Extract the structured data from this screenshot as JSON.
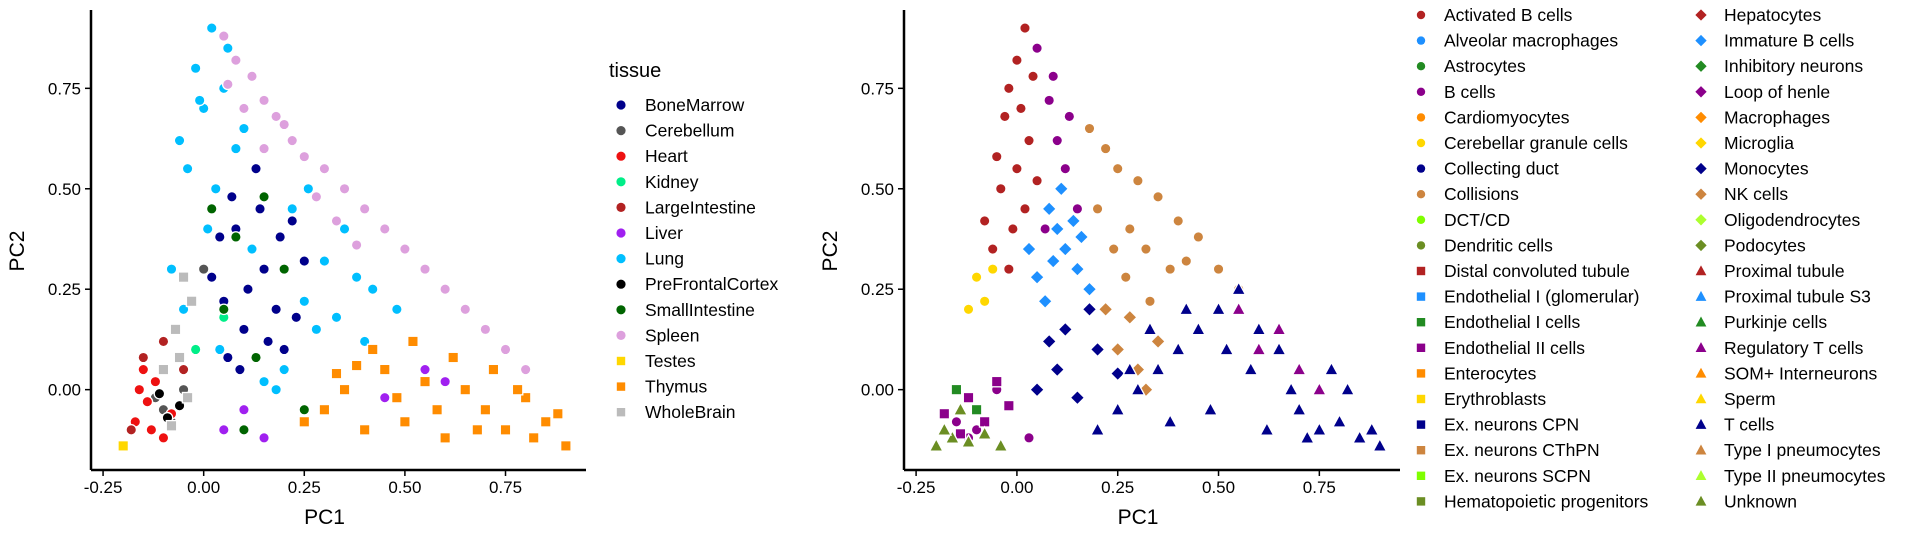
{
  "chart_data": [
    {
      "type": "scatter",
      "xlabel": "PC1",
      "ylabel": "PC2",
      "xlim": [
        -0.28,
        0.95
      ],
      "ylim": [
        -0.2,
        0.94
      ],
      "x_ticks": [
        -0.25,
        0.0,
        0.25,
        0.5,
        0.75
      ],
      "x_tick_labels": [
        "-0.25",
        "0.00",
        "0.25",
        "0.50",
        "0.75"
      ],
      "y_ticks": [
        0.0,
        0.25,
        0.5,
        0.75
      ],
      "y_tick_labels": [
        "0.00",
        "0.25",
        "0.50",
        "0.75"
      ],
      "grid": false,
      "legend_title": "tissue",
      "legend_placement": "right",
      "series": [
        {
          "name": "BoneMarrow",
          "color": "#00008b",
          "shape": "circle",
          "x": [
            0.08,
            0.12,
            0.15,
            0.05,
            0.1,
            0.18,
            0.22,
            0.02,
            0.07,
            0.13,
            0.2,
            0.25,
            0.09,
            0.16,
            0.11,
            0.04,
            0.14,
            0.19,
            0.06,
            0.23
          ],
          "y": [
            0.4,
            0.35,
            0.3,
            0.22,
            0.15,
            0.2,
            0.42,
            0.28,
            0.48,
            0.55,
            0.1,
            0.32,
            0.05,
            0.12,
            0.25,
            0.38,
            0.45,
            0.38,
            0.08,
            0.18
          ]
        },
        {
          "name": "Cerebellum",
          "color": "#555555",
          "shape": "circle",
          "x": [
            -0.1,
            -0.05,
            -0.08,
            -0.12,
            0.0
          ],
          "y": [
            -0.05,
            0.0,
            -0.08,
            -0.02,
            0.3
          ]
        },
        {
          "name": "Heart",
          "color": "#ee1111",
          "shape": "circle",
          "x": [
            -0.17,
            -0.14,
            -0.12,
            -0.15,
            -0.1,
            -0.08,
            -0.13,
            -0.16
          ],
          "y": [
            -0.08,
            -0.03,
            0.02,
            0.05,
            -0.12,
            -0.06,
            -0.1,
            0.0
          ]
        },
        {
          "name": "Kidney",
          "color": "#00ee88",
          "shape": "circle",
          "x": [
            -0.02,
            0.05
          ],
          "y": [
            0.1,
            0.18
          ]
        },
        {
          "name": "LargeIntestine",
          "color": "#b22222",
          "shape": "circle",
          "x": [
            -0.18,
            -0.15,
            -0.1,
            -0.05
          ],
          "y": [
            -0.1,
            0.08,
            0.12,
            0.05
          ]
        },
        {
          "name": "Liver",
          "color": "#a020f0",
          "shape": "circle",
          "x": [
            0.05,
            0.1,
            0.15,
            0.45,
            0.55,
            0.6
          ],
          "y": [
            -0.1,
            -0.05,
            -0.12,
            -0.02,
            0.05,
            0.02
          ]
        },
        {
          "name": "Lung",
          "color": "#00bfff",
          "shape": "circle",
          "x": [
            0.02,
            -0.02,
            0.0,
            0.05,
            0.08,
            -0.04,
            0.03,
            0.12,
            0.3,
            0.35,
            0.38,
            0.42,
            0.28,
            0.2,
            0.15,
            -0.05,
            -0.08,
            0.01,
            0.04,
            -0.06,
            0.18,
            0.25,
            0.33,
            0.4,
            0.48,
            0.22,
            0.26,
            0.1,
            0.06,
            -0.01
          ],
          "y": [
            0.9,
            0.8,
            0.7,
            0.75,
            0.6,
            0.55,
            0.5,
            0.35,
            0.32,
            0.4,
            0.28,
            0.25,
            0.15,
            0.05,
            0.02,
            0.2,
            0.3,
            0.4,
            0.1,
            0.62,
            0.0,
            0.22,
            0.18,
            0.12,
            0.2,
            0.45,
            0.5,
            0.65,
            0.85,
            0.72
          ]
        },
        {
          "name": "PreFrontalCortex",
          "color": "#000000",
          "shape": "circle",
          "x": [
            -0.09,
            -0.06,
            -0.11
          ],
          "y": [
            -0.07,
            -0.04,
            -0.01
          ]
        },
        {
          "name": "SmallIntestine",
          "color": "#006400",
          "shape": "circle",
          "x": [
            0.02,
            0.08,
            0.15,
            0.2,
            0.1,
            0.05,
            0.13,
            0.25
          ],
          "y": [
            0.45,
            0.38,
            0.48,
            0.3,
            -0.1,
            0.2,
            0.08,
            -0.05
          ]
        },
        {
          "name": "Spleen",
          "color": "#dda0dd",
          "shape": "circle",
          "x": [
            0.05,
            0.08,
            0.12,
            0.15,
            0.18,
            0.22,
            0.25,
            0.3,
            0.35,
            0.4,
            0.45,
            0.5,
            0.55,
            0.6,
            0.65,
            0.7,
            0.75,
            0.8,
            0.1,
            0.2,
            0.28,
            0.33,
            0.38,
            0.15,
            0.06
          ],
          "y": [
            0.88,
            0.82,
            0.78,
            0.72,
            0.68,
            0.62,
            0.58,
            0.55,
            0.5,
            0.45,
            0.4,
            0.35,
            0.3,
            0.25,
            0.2,
            0.15,
            0.1,
            0.05,
            0.7,
            0.66,
            0.48,
            0.42,
            0.36,
            0.6,
            0.76
          ]
        },
        {
          "name": "Testes",
          "color": "#ffd700",
          "shape": "square",
          "x": [
            -0.2
          ],
          "y": [
            -0.14
          ]
        },
        {
          "name": "Thymus",
          "color": "#ff8c00",
          "shape": "square",
          "x": [
            0.3,
            0.35,
            0.4,
            0.45,
            0.5,
            0.55,
            0.6,
            0.65,
            0.7,
            0.75,
            0.8,
            0.85,
            0.9,
            0.42,
            0.52,
            0.62,
            0.72,
            0.82,
            0.38,
            0.48,
            0.58,
            0.68,
            0.78,
            0.88,
            0.25,
            0.33
          ],
          "y": [
            -0.05,
            0.0,
            -0.1,
            0.05,
            -0.08,
            0.02,
            -0.12,
            0.0,
            -0.05,
            -0.1,
            -0.02,
            -0.08,
            -0.14,
            0.1,
            0.12,
            0.08,
            0.05,
            -0.12,
            0.06,
            -0.02,
            -0.05,
            -0.1,
            0.0,
            -0.06,
            -0.08,
            0.04
          ]
        },
        {
          "name": "WholeBrain",
          "color": "#bbbbbb",
          "shape": "square",
          "x": [
            -0.05,
            -0.03,
            -0.07,
            -0.1,
            -0.04,
            -0.08,
            -0.06
          ],
          "y": [
            0.28,
            0.22,
            0.15,
            0.05,
            -0.02,
            -0.09,
            0.08
          ]
        }
      ]
    },
    {
      "type": "scatter",
      "xlabel": "PC1",
      "ylabel": "PC2",
      "xlim": [
        -0.28,
        0.95
      ],
      "ylim": [
        -0.2,
        0.94
      ],
      "x_ticks": [
        -0.25,
        0.0,
        0.25,
        0.5,
        0.75
      ],
      "x_tick_labels": [
        "-0.25",
        "0.00",
        "0.25",
        "0.50",
        "0.75"
      ],
      "y_ticks": [
        0.0,
        0.25,
        0.5,
        0.75
      ],
      "y_tick_labels": [
        "0.00",
        "0.25",
        "0.50",
        "0.75"
      ],
      "grid": false,
      "legend_placement": "right",
      "series": [
        {
          "name": "Activated B cells",
          "color": "#b22222",
          "shape": "circle",
          "x": [
            0.02,
            0.0,
            -0.02,
            0.04,
            -0.03,
            0.01,
            0.03,
            -0.05,
            -0.04,
            0.0,
            0.02,
            -0.01,
            -0.06,
            -0.02,
            0.05,
            -0.08
          ],
          "y": [
            0.9,
            0.82,
            0.75,
            0.78,
            0.68,
            0.7,
            0.62,
            0.58,
            0.5,
            0.55,
            0.45,
            0.4,
            0.35,
            0.3,
            0.52,
            0.42
          ]
        },
        {
          "name": "Alveolar macrophages",
          "color": "#1e90ff",
          "shape": "circle",
          "x": [],
          "y": []
        },
        {
          "name": "Astrocytes",
          "color": "#228b22",
          "shape": "circle",
          "x": [],
          "y": []
        },
        {
          "name": "B cells",
          "color": "#8b008b",
          "shape": "circle",
          "x": [
            0.05,
            0.08,
            0.1,
            0.12,
            0.15,
            0.07,
            0.09,
            0.13,
            -0.12,
            -0.15,
            -0.1,
            -0.05,
            0.03
          ],
          "y": [
            0.85,
            0.72,
            0.62,
            0.55,
            0.45,
            0.4,
            0.78,
            0.68,
            -0.12,
            -0.08,
            -0.1,
            0.0,
            -0.12
          ]
        },
        {
          "name": "Cardiomyocytes",
          "color": "#ff8c00",
          "shape": "circle",
          "x": [],
          "y": []
        },
        {
          "name": "Cerebellar granule cells",
          "color": "#ffd700",
          "shape": "circle",
          "x": [
            -0.1,
            -0.08,
            -0.12,
            -0.06
          ],
          "y": [
            0.28,
            0.22,
            0.2,
            0.3
          ]
        },
        {
          "name": "Collecting duct",
          "color": "#00008b",
          "shape": "circle",
          "x": [],
          "y": []
        },
        {
          "name": "Collisions",
          "color": "#cd853f",
          "shape": "circle",
          "x": [
            0.18,
            0.22,
            0.25,
            0.3,
            0.35,
            0.4,
            0.45,
            0.28,
            0.32,
            0.38,
            0.2,
            0.24,
            0.42,
            0.5,
            0.55,
            0.27,
            0.33
          ],
          "y": [
            0.65,
            0.6,
            0.55,
            0.52,
            0.48,
            0.42,
            0.38,
            0.4,
            0.35,
            0.3,
            0.45,
            0.35,
            0.32,
            0.3,
            0.25,
            0.28,
            0.22
          ]
        },
        {
          "name": "DCT/CD",
          "color": "#7fff00",
          "shape": "circle",
          "x": [],
          "y": []
        },
        {
          "name": "Dendritic cells",
          "color": "#6b8e23",
          "shape": "circle",
          "x": [],
          "y": []
        },
        {
          "name": "Distal convoluted tubule",
          "color": "#b22222",
          "shape": "square",
          "x": [],
          "y": []
        },
        {
          "name": "Endothelial I (glomerular)",
          "color": "#1e90ff",
          "shape": "square",
          "x": [],
          "y": []
        },
        {
          "name": "Endothelial I cells",
          "color": "#228b22",
          "shape": "square",
          "x": [
            -0.15,
            -0.1
          ],
          "y": [
            0.0,
            -0.05
          ]
        },
        {
          "name": "Endothelial II cells",
          "color": "#8b008b",
          "shape": "square",
          "x": [
            -0.18,
            -0.12,
            -0.08,
            -0.05,
            -0.02,
            -0.14
          ],
          "y": [
            -0.06,
            -0.02,
            -0.08,
            0.02,
            -0.04,
            -0.11
          ]
        },
        {
          "name": "Enterocytes",
          "color": "#ff8c00",
          "shape": "square",
          "x": [],
          "y": []
        },
        {
          "name": "Erythroblasts",
          "color": "#ffd700",
          "shape": "square",
          "x": [],
          "y": []
        },
        {
          "name": "Ex. neurons CPN",
          "color": "#00008b",
          "shape": "square",
          "x": [],
          "y": []
        },
        {
          "name": "Ex. neurons CThPN",
          "color": "#cd853f",
          "shape": "square",
          "x": [],
          "y": []
        },
        {
          "name": "Ex. neurons SCPN",
          "color": "#7fff00",
          "shape": "square",
          "x": [],
          "y": []
        },
        {
          "name": "Hematopoietic progenitors",
          "color": "#6b8e23",
          "shape": "square",
          "x": [],
          "y": []
        },
        {
          "name": "Hepatocytes",
          "color": "#b22222",
          "shape": "diamond",
          "x": [],
          "y": []
        },
        {
          "name": "Immature B cells",
          "color": "#1e90ff",
          "shape": "diamond",
          "x": [
            0.08,
            0.1,
            0.12,
            0.15,
            0.18,
            0.05,
            0.07,
            0.11,
            0.14,
            0.03,
            0.16,
            0.09
          ],
          "y": [
            0.45,
            0.4,
            0.35,
            0.3,
            0.25,
            0.28,
            0.22,
            0.5,
            0.42,
            0.35,
            0.38,
            0.32
          ]
        },
        {
          "name": "Inhibitory neurons",
          "color": "#228b22",
          "shape": "diamond",
          "x": [],
          "y": []
        },
        {
          "name": "Loop of henle",
          "color": "#8b008b",
          "shape": "diamond",
          "x": [],
          "y": []
        },
        {
          "name": "Macrophages",
          "color": "#ff8c00",
          "shape": "diamond",
          "x": [],
          "y": []
        },
        {
          "name": "Microglia",
          "color": "#ffd700",
          "shape": "diamond",
          "x": [],
          "y": []
        },
        {
          "name": "Monocytes",
          "color": "#00008b",
          "shape": "diamond",
          "x": [
            0.05,
            0.1,
            0.15,
            0.2,
            0.25,
            0.12,
            0.18,
            0.08
          ],
          "y": [
            0.0,
            0.05,
            -0.02,
            0.1,
            0.04,
            0.15,
            0.2,
            0.12
          ]
        },
        {
          "name": "NK cells",
          "color": "#cd853f",
          "shape": "diamond",
          "x": [
            0.25,
            0.3,
            0.22,
            0.35,
            0.28,
            0.32
          ],
          "y": [
            0.1,
            0.05,
            0.2,
            0.12,
            0.18,
            0.0
          ]
        },
        {
          "name": "Oligodendrocytes",
          "color": "#adff2f",
          "shape": "diamond",
          "x": [],
          "y": []
        },
        {
          "name": "Podocytes",
          "color": "#6b8e23",
          "shape": "diamond",
          "x": [],
          "y": []
        },
        {
          "name": "Proximal tubule",
          "color": "#b22222",
          "shape": "triangle",
          "x": [],
          "y": []
        },
        {
          "name": "Proximal tubule S3",
          "color": "#1e90ff",
          "shape": "triangle",
          "x": [],
          "y": []
        },
        {
          "name": "Purkinje cells",
          "color": "#228b22",
          "shape": "triangle",
          "x": [],
          "y": []
        },
        {
          "name": "Regulatory T cells",
          "color": "#8b008b",
          "shape": "triangle",
          "x": [
            0.65,
            0.7,
            0.75,
            0.55,
            0.6
          ],
          "y": [
            0.15,
            0.05,
            0.0,
            0.2,
            0.1
          ]
        },
        {
          "name": "SOM+ Interneurons",
          "color": "#ff8c00",
          "shape": "triangle",
          "x": [],
          "y": []
        },
        {
          "name": "Sperm",
          "color": "#ffd700",
          "shape": "triangle",
          "x": [],
          "y": []
        },
        {
          "name": "T cells",
          "color": "#00008b",
          "shape": "triangle",
          "x": [
            0.2,
            0.25,
            0.3,
            0.35,
            0.4,
            0.45,
            0.5,
            0.55,
            0.6,
            0.65,
            0.7,
            0.75,
            0.8,
            0.85,
            0.9,
            0.38,
            0.48,
            0.58,
            0.68,
            0.78,
            0.88,
            0.42,
            0.52,
            0.62,
            0.72,
            0.82,
            0.33,
            0.28
          ],
          "y": [
            -0.1,
            -0.05,
            0.0,
            0.05,
            0.1,
            0.15,
            0.2,
            0.25,
            0.15,
            0.1,
            -0.05,
            -0.1,
            -0.08,
            -0.12,
            -0.14,
            -0.08,
            -0.05,
            0.05,
            0.0,
            0.05,
            -0.1,
            0.2,
            0.1,
            -0.1,
            -0.12,
            0.0,
            0.15,
            0.05
          ]
        },
        {
          "name": "Type I pneumocytes",
          "color": "#cd853f",
          "shape": "triangle",
          "x": [],
          "y": []
        },
        {
          "name": "Type II pneumocytes",
          "color": "#adff2f",
          "shape": "triangle",
          "x": [],
          "y": []
        },
        {
          "name": "Unknown",
          "color": "#6b8e23",
          "shape": "triangle",
          "x": [
            -0.2,
            -0.16,
            -0.12,
            -0.08,
            -0.04,
            -0.14,
            -0.18
          ],
          "y": [
            -0.14,
            -0.12,
            -0.13,
            -0.11,
            -0.14,
            -0.05,
            -0.1
          ]
        }
      ]
    }
  ]
}
